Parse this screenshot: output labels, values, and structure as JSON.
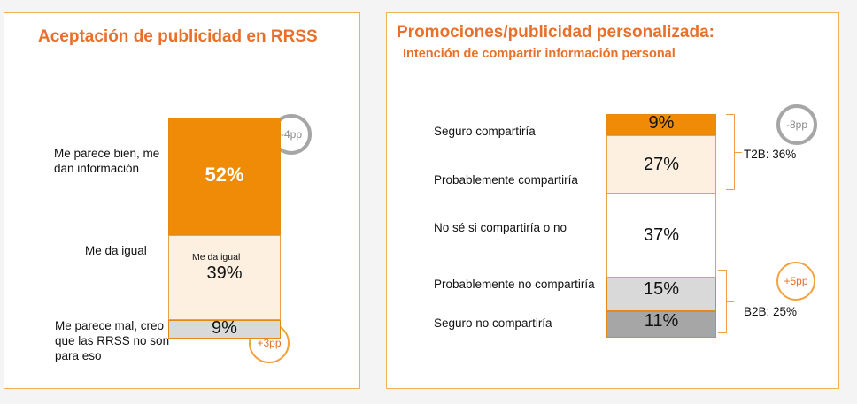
{
  "chart_data": [
    {
      "type": "bar",
      "title": "Aceptación de  publicidad en RRSS",
      "categories": [
        "Me parece bien, me dan información",
        "Me da igual",
        "Me parece mal, creo que las RRSS no son para eso"
      ],
      "values": [
        52,
        39,
        9
      ],
      "value_labels": [
        "52%",
        "39%",
        "9%"
      ],
      "inner_label": "Me da igual",
      "changes": {
        "Me parece bien, me dan información": "-4pp",
        "Me parece mal, creo que las RRSS no son para eso": "+3pp"
      },
      "colors": [
        "#ef8b07",
        "#fdf0e0",
        "#d9d9d9"
      ]
    },
    {
      "type": "bar",
      "title": "Promociones/publicidad personalizada:",
      "subtitle": "Intención de compartir  información personal",
      "categories": [
        "Seguro compartiría",
        "Probablemente compartiría",
        "No sé si compartiría o no",
        "Probablemente no compartiría",
        "Seguro no compartiría"
      ],
      "values": [
        9,
        27,
        37,
        15,
        11
      ],
      "value_labels": [
        "9%",
        "27%",
        "37%",
        "15%",
        "11%"
      ],
      "groups": [
        {
          "label": "T2B: 36%",
          "change": "-8pp"
        },
        {
          "label": "B2B: 25%",
          "change": "+5pp"
        }
      ],
      "colors": [
        "#ef8b07",
        "#fdf0e0",
        "#ffffff",
        "#d9d9d9",
        "#a6a6a6"
      ]
    }
  ]
}
